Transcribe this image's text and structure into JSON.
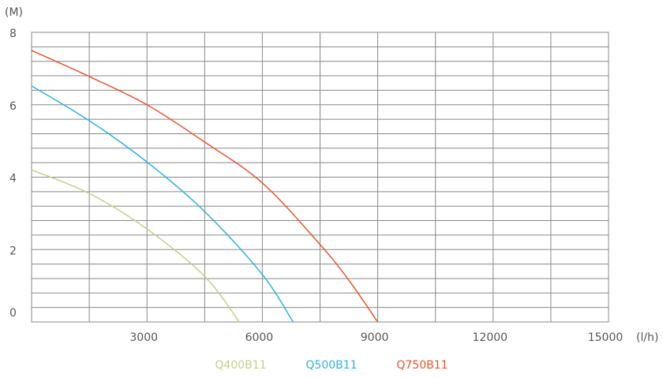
{
  "chart_data": {
    "type": "line",
    "y_label": "(M)",
    "x_label": "(l/h)",
    "xlim": [
      0,
      15000
    ],
    "xticks": [
      3000,
      6000,
      9000,
      12000,
      15000
    ],
    "ylim": [
      0,
      8
    ],
    "yticks": [
      0,
      2,
      4,
      6,
      8
    ],
    "grid": true,
    "legend": "bottom",
    "series": [
      {
        "name": "Q400B11",
        "color": "#c3cf8c",
        "x": [
          0,
          1500,
          3000,
          4500,
          5400
        ],
        "values": [
          4.2,
          3.55,
          2.57,
          1.26,
          0
        ]
      },
      {
        "name": "Q500B11",
        "color": "#2bb3e4",
        "x": [
          0,
          1500,
          3000,
          4500,
          6000,
          6800
        ],
        "values": [
          6.52,
          5.56,
          4.42,
          3.05,
          1.31,
          0
        ]
      },
      {
        "name": "Q750B11",
        "color": "#e8542f",
        "x": [
          0,
          1500,
          3000,
          4500,
          6000,
          7500,
          8250,
          9000
        ],
        "values": [
          7.5,
          6.78,
          6.0,
          4.97,
          3.84,
          2.14,
          1.15,
          0
        ]
      }
    ]
  }
}
